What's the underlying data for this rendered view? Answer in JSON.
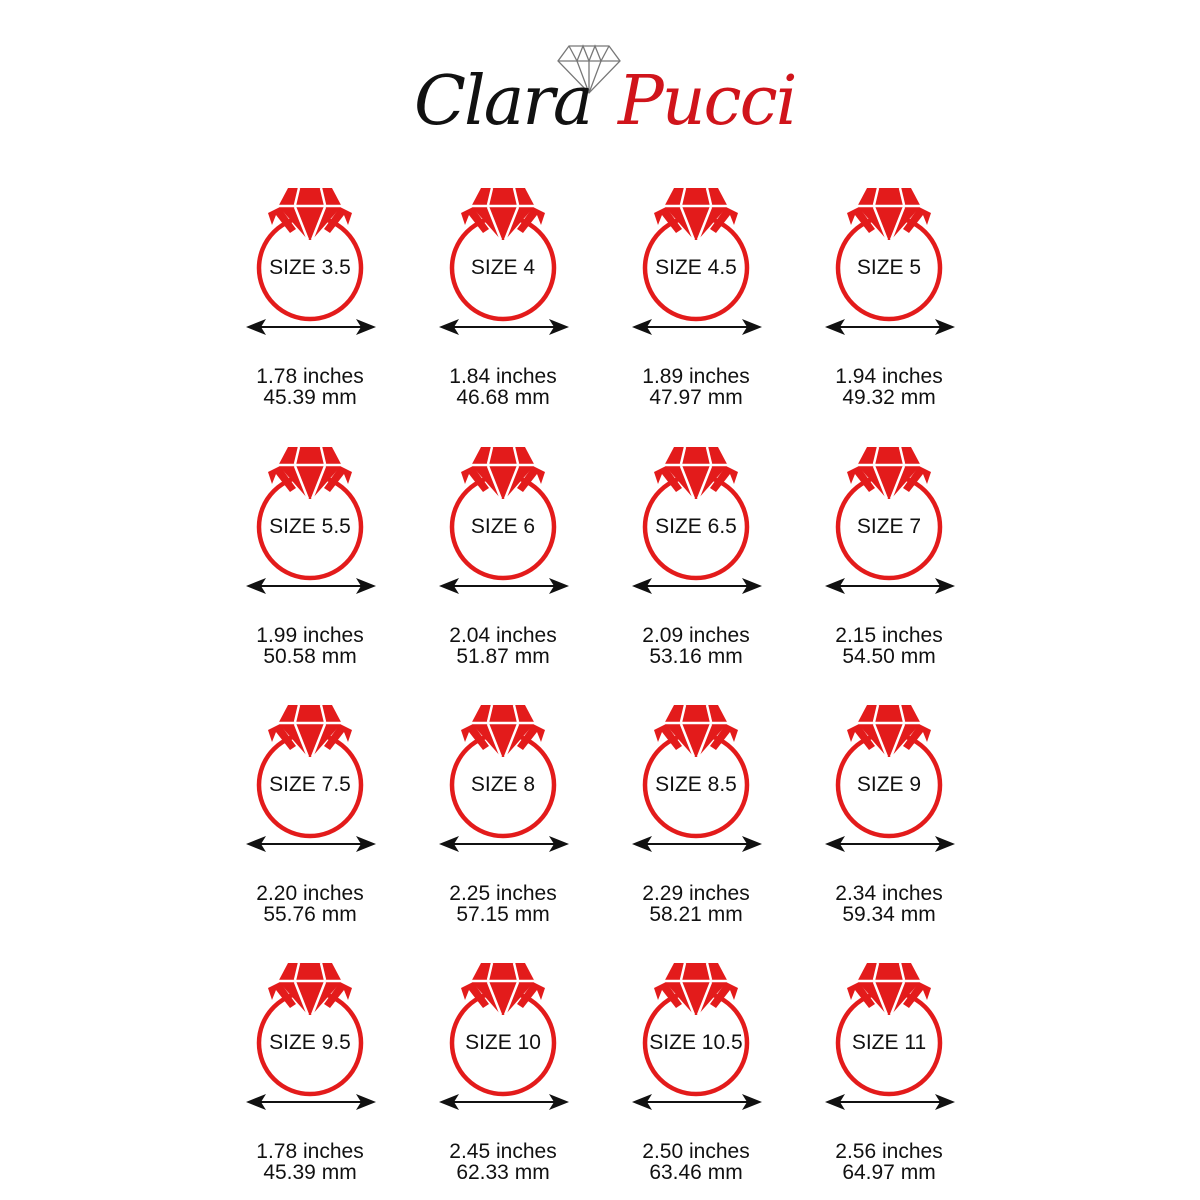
{
  "brand": {
    "first": "Clara",
    "second": "Pucci",
    "accent": "#d0141b",
    "logo_icon": "diamond-outline-icon"
  },
  "ring_color": "#e31b1b",
  "sizes": [
    {
      "label": "SIZE 3.5",
      "inches": "1.78 inches",
      "mm": "45.39 mm"
    },
    {
      "label": "SIZE 4",
      "inches": "1.84 inches",
      "mm": "46.68 mm"
    },
    {
      "label": "SIZE 4.5",
      "inches": "1.89 inches",
      "mm": "47.97 mm"
    },
    {
      "label": "SIZE 5",
      "inches": "1.94 inches",
      "mm": "49.32 mm"
    },
    {
      "label": "SIZE 5.5",
      "inches": "1.99 inches",
      "mm": "50.58 mm"
    },
    {
      "label": "SIZE 6",
      "inches": "2.04 inches",
      "mm": "51.87 mm"
    },
    {
      "label": "SIZE 6.5",
      "inches": "2.09 inches",
      "mm": "53.16 mm"
    },
    {
      "label": "SIZE 7",
      "inches": "2.15 inches",
      "mm": "54.50 mm"
    },
    {
      "label": "SIZE 7.5",
      "inches": "2.20 inches",
      "mm": "55.76 mm"
    },
    {
      "label": "SIZE 8",
      "inches": "2.25 inches",
      "mm": "57.15 mm"
    },
    {
      "label": "SIZE 8.5",
      "inches": "2.29 inches",
      "mm": "58.21 mm"
    },
    {
      "label": "SIZE 9",
      "inches": "2.34 inches",
      "mm": "59.34 mm"
    },
    {
      "label": "SIZE 9.5",
      "inches": "1.78 inches",
      "mm": "45.39 mm"
    },
    {
      "label": "SIZE 10",
      "inches": "2.45 inches",
      "mm": "62.33 mm"
    },
    {
      "label": "SIZE 10.5",
      "inches": "2.50 inches",
      "mm": "63.46 mm"
    },
    {
      "label": "SIZE 11",
      "inches": "2.56 inches",
      "mm": "64.97 mm"
    }
  ]
}
